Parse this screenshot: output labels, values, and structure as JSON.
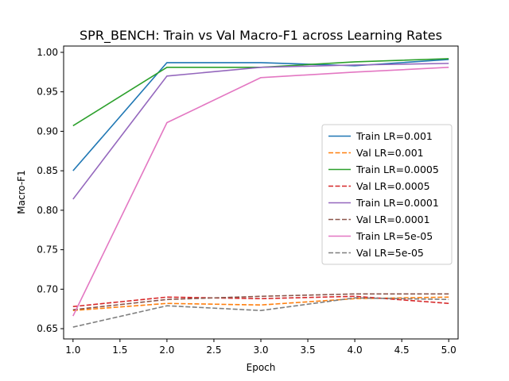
{
  "chart_data": {
    "type": "line",
    "title": "SPR_BENCH: Train vs Val Macro-F1 across Learning Rates",
    "xlabel": "Epoch",
    "ylabel": "Macro-F1",
    "xlim": [
      0.9,
      5.1
    ],
    "ylim": [
      0.637,
      1.008
    ],
    "xticks": [
      1.0,
      1.5,
      2.0,
      2.5,
      3.0,
      3.5,
      4.0,
      4.5,
      5.0
    ],
    "xtick_labels": [
      "1.0",
      "1.5",
      "2.0",
      "2.5",
      "3.0",
      "3.5",
      "4.0",
      "4.5",
      "5.0"
    ],
    "yticks": [
      0.65,
      0.7,
      0.75,
      0.8,
      0.85,
      0.9,
      0.95,
      1.0
    ],
    "ytick_labels": [
      "0.65",
      "0.70",
      "0.75",
      "0.80",
      "0.85",
      "0.90",
      "0.95",
      "1.00"
    ],
    "grid": false,
    "legend_position": "center-right",
    "x": [
      1,
      2,
      3,
      4,
      5
    ],
    "series": [
      {
        "name": "Train LR=0.001",
        "color": "#1f77b4",
        "dash": "solid",
        "values": [
          0.85,
          0.987,
          0.987,
          0.983,
          0.991
        ]
      },
      {
        "name": "Val LR=0.001",
        "color": "#ff7f0e",
        "dash": "dashed",
        "values": [
          0.673,
          0.682,
          0.68,
          0.688,
          0.69
        ]
      },
      {
        "name": "Train LR=0.0005",
        "color": "#2ca02c",
        "dash": "solid",
        "values": [
          0.907,
          0.981,
          0.981,
          0.988,
          0.992
        ]
      },
      {
        "name": "Val LR=0.0005",
        "color": "#d62728",
        "dash": "dashed",
        "values": [
          0.678,
          0.69,
          0.688,
          0.691,
          0.682
        ]
      },
      {
        "name": "Train LR=0.0001",
        "color": "#9467bd",
        "dash": "solid",
        "values": [
          0.814,
          0.97,
          0.981,
          0.984,
          0.986
        ]
      },
      {
        "name": "Val LR=0.0001",
        "color": "#8c564b",
        "dash": "dashed",
        "values": [
          0.674,
          0.687,
          0.691,
          0.694,
          0.694
        ]
      },
      {
        "name": "Train LR=5e-05",
        "color": "#e377c2",
        "dash": "solid",
        "values": [
          0.666,
          0.911,
          0.968,
          0.975,
          0.981
        ]
      },
      {
        "name": "Val LR=5e-05",
        "color": "#7f7f7f",
        "dash": "dashed",
        "values": [
          0.652,
          0.679,
          0.673,
          0.689,
          0.687
        ]
      }
    ]
  }
}
